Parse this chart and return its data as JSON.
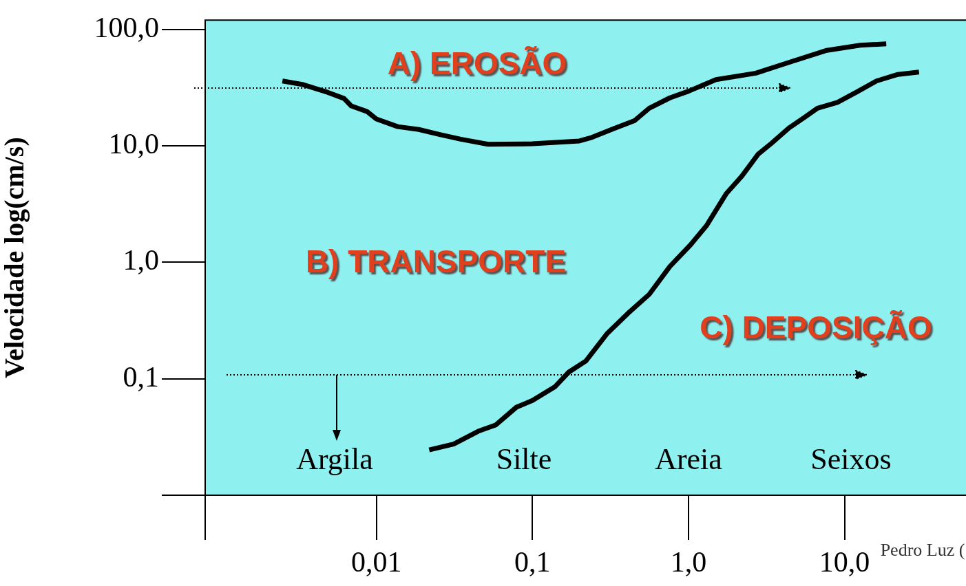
{
  "chart_data": {
    "type": "line",
    "ylabel": "Velocidade log(cm/s)",
    "log": "xy",
    "marker": "none",
    "line_style": "solid",
    "xlim": [
      0.0008,
      60
    ],
    "ylim": [
      0.01,
      120
    ],
    "xticks": [
      {
        "value": 0.01,
        "label": "0,01"
      },
      {
        "value": 0.1,
        "label": "0,1"
      },
      {
        "value": 1,
        "label": "1,0"
      },
      {
        "value": 10,
        "label": "10,0"
      }
    ],
    "yticks": [
      {
        "value": 0.1,
        "label": "0,1"
      },
      {
        "value": 1,
        "label": "1,0"
      },
      {
        "value": 10,
        "label": "10,0"
      },
      {
        "value": 100,
        "label": "100,0"
      }
    ],
    "series": [
      {
        "color": "#000000",
        "x": [
          0.0025,
          0.0034,
          0.0049,
          0.0062,
          0.0069,
          0.0087,
          0.01,
          0.0137,
          0.0187,
          0.0255,
          0.0347,
          0.052,
          0.1,
          0.2,
          0.24,
          0.33,
          0.45,
          0.56,
          0.76,
          1,
          1.5,
          2.7,
          4.4,
          7.7,
          12.6,
          18.5
        ],
        "values": [
          36,
          33.5,
          28.7,
          25.5,
          22,
          19.7,
          17,
          14.6,
          13.8,
          12.5,
          11.4,
          10.3,
          10.4,
          11,
          11.8,
          14,
          16.4,
          21,
          25.8,
          29.4,
          37,
          42,
          52,
          66,
          73,
          75
        ]
      },
      {
        "color": "#000000",
        "x": [
          0.0218,
          0.0313,
          0.0449,
          0.058,
          0.079,
          0.1,
          0.139,
          0.171,
          0.22,
          0.3,
          0.41,
          0.56,
          0.76,
          1.03,
          1.31,
          1.75,
          2.2,
          2.8,
          3.4,
          4.4,
          5.6,
          6.7,
          9,
          12,
          16,
          22,
          30
        ],
        "values": [
          0.0245,
          0.0275,
          0.0354,
          0.04,
          0.057,
          0.065,
          0.085,
          0.114,
          0.142,
          0.243,
          0.365,
          0.53,
          0.92,
          1.41,
          2.08,
          3.9,
          5.5,
          8.5,
          10.5,
          14.2,
          17.7,
          21,
          23.6,
          29,
          36,
          41,
          43
        ]
      }
    ],
    "annotations": [
      "A) EROSÃO",
      "B) TRANSPORTE",
      "C) DEPOSIÇÃO",
      "Argila",
      "Silte",
      "Areia",
      "Seixos",
      "Pedro Luz ("
    ]
  }
}
